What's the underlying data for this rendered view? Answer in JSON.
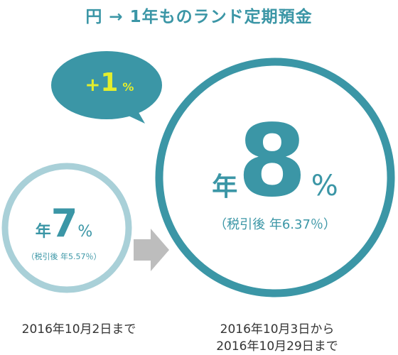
{
  "title": "円 → 1年ものランド定期預金",
  "bubble": {
    "plus": "+",
    "value": "1",
    "unit": "%"
  },
  "old_rate": {
    "prefix": "年",
    "value": "7",
    "unit": "%",
    "after_tax": "（税引後 年5.57％）",
    "period": "2016年10月2日まで"
  },
  "new_rate": {
    "prefix": "年",
    "value": "8",
    "unit": "%",
    "after_tax": "（税引後 年6.37％）",
    "period_line1": "2016年10月3日から",
    "period_line2": "2016年10月29日まで"
  },
  "icons": {
    "arrow": "right-arrow-icon",
    "bubble": "speech-bubble-icon"
  },
  "colors": {
    "teal": "#3b96a6",
    "light_teal": "#a9d0d8",
    "bubble": "#3b96a6",
    "bubble_text": "#e3ee2c",
    "arrow": "#bdbdbd",
    "text": "#333333"
  }
}
